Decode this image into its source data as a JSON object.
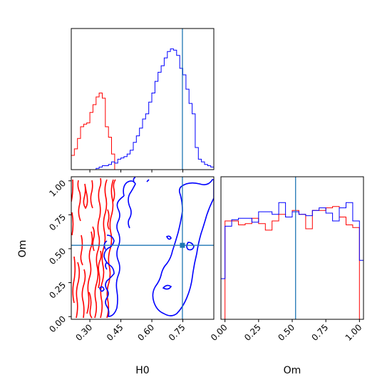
{
  "chart_data": {
    "type": "corner",
    "parameters": [
      "H0",
      "Om"
    ],
    "truth": {
      "H0": 0.748,
      "Om": 0.525
    },
    "colors": {
      "blue_sample": "#0000ff",
      "red_sample": "#ff0000",
      "truth_line": "#1f77b4"
    },
    "grid": false,
    "panels": [
      {
        "id": "hist_H0",
        "type": "step-histogram",
        "xlim": [
          0.21,
          0.9
        ],
        "y_ticks_shown": false,
        "series": [
          {
            "color": "red",
            "bin_edges": [
              0.21,
              0.225,
              0.24,
              0.255,
              0.27,
              0.285,
              0.3,
              0.315,
              0.33,
              0.345,
              0.36,
              0.375,
              0.39,
              0.405,
              0.42
            ],
            "counts": [
              0.11,
              0.16,
              0.24,
              0.33,
              0.35,
              0.36,
              0.44,
              0.5,
              0.56,
              0.59,
              0.55,
              0.33,
              0.25,
              0.12
            ]
          },
          {
            "color": "blue",
            "bin_edges": [
              0.33,
              0.345,
              0.36,
              0.375,
              0.39,
              0.405,
              0.42,
              0.435,
              0.45,
              0.465,
              0.48,
              0.495,
              0.51,
              0.525,
              0.54,
              0.555,
              0.57,
              0.585,
              0.6,
              0.615,
              0.63,
              0.645,
              0.66,
              0.675,
              0.69,
              0.705,
              0.72,
              0.735,
              0.75,
              0.765,
              0.78,
              0.795,
              0.81,
              0.825,
              0.84,
              0.855,
              0.87,
              0.885,
              0.9
            ],
            "counts": [
              0.01,
              0.02,
              0.03,
              0.03,
              0.04,
              0.06,
              0.05,
              0.08,
              0.09,
              0.1,
              0.12,
              0.15,
              0.21,
              0.26,
              0.32,
              0.39,
              0.43,
              0.52,
              0.59,
              0.68,
              0.75,
              0.8,
              0.86,
              0.91,
              0.93,
              0.92,
              0.88,
              0.78,
              0.73,
              0.62,
              0.51,
              0.43,
              0.17,
              0.08,
              0.06,
              0.04,
              0.03,
              0.02
            ]
          }
        ]
      },
      {
        "id": "joint_H0_Om",
        "type": "contour",
        "xlim": [
          0.21,
          0.9
        ],
        "ylim": [
          -0.02,
          1.03
        ],
        "xlabel": "H0",
        "ylabel": "Om",
        "xticks": [
          "0.30",
          "0.45",
          "0.60",
          "0.75"
        ],
        "yticks": [
          "0.00",
          "0.25",
          "0.50",
          "0.75",
          "1.00"
        ]
      },
      {
        "id": "hist_Om",
        "type": "step-histogram",
        "xlim": [
          -0.03,
          1.03
        ],
        "y_ticks_shown": false,
        "xlabel": "Om",
        "xticks": [
          "0.00",
          "0.25",
          "0.50",
          "0.75",
          "1.00"
        ],
        "series": [
          {
            "color": "red",
            "bin_edges": [
              0.0,
              0.05,
              0.1,
              0.15,
              0.2,
              0.25,
              0.3,
              0.35,
              0.4,
              0.45,
              0.5,
              0.55,
              0.6,
              0.65,
              0.7,
              0.75,
              0.8,
              0.85,
              0.9,
              0.95,
              1.0
            ],
            "counts": [
              0.75,
              0.75,
              0.72,
              0.73,
              0.77,
              0.73,
              0.68,
              0.75,
              0.8,
              0.78,
              0.83,
              0.8,
              0.69,
              0.83,
              0.83,
              0.85,
              0.86,
              0.78,
              0.72,
              0.7
            ]
          },
          {
            "color": "blue",
            "bin_edges": [
              -0.03,
              0.0,
              0.05,
              0.1,
              0.15,
              0.2,
              0.25,
              0.3,
              0.35,
              0.4,
              0.45,
              0.5,
              0.55,
              0.6,
              0.65,
              0.7,
              0.75,
              0.8,
              0.85,
              0.9,
              0.95,
              1.0,
              1.03
            ],
            "counts": [
              0.31,
              0.71,
              0.76,
              0.77,
              0.77,
              0.74,
              0.82,
              0.82,
              0.8,
              0.89,
              0.78,
              0.82,
              0.8,
              0.79,
              0.83,
              0.85,
              0.81,
              0.75,
              0.85,
              0.89,
              0.75,
              0.45
            ]
          }
        ]
      }
    ]
  }
}
